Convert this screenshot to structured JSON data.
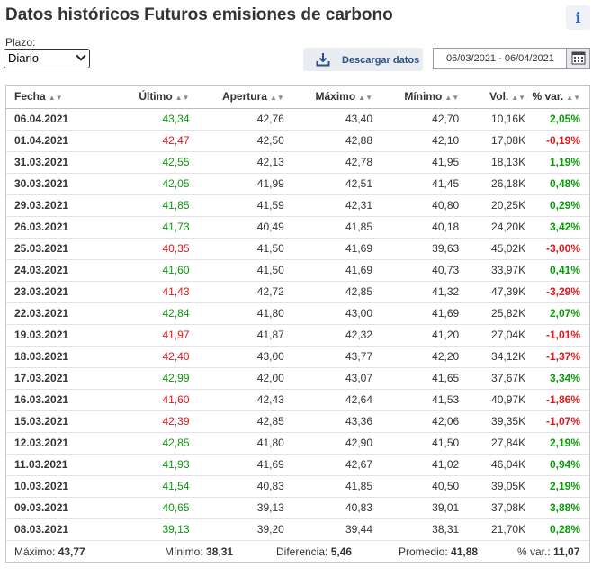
{
  "title": "Datos históricos Futuros emisiones de carbono",
  "info_icon": "info-icon",
  "plazo": {
    "label": "Plazo:",
    "selected": "Diario"
  },
  "download": {
    "label": "Descargar datos",
    "icon": "download-icon"
  },
  "date_range": {
    "value": "06/03/2021 - 06/04/2021",
    "icon": "calendar-icon"
  },
  "colors": {
    "up": "#0a9a0a",
    "down": "#e0161b",
    "accent": "#2a4f8a"
  },
  "table": {
    "headers": [
      "Fecha",
      "Último",
      "Apertura",
      "Máximo",
      "Mínimo",
      "Vol.",
      "% var."
    ],
    "rows": [
      {
        "fecha": "06.04.2021",
        "ultimo": "43,34",
        "apertura": "42,76",
        "maximo": "43,40",
        "minimo": "42,70",
        "vol": "10,16K",
        "var": "2,05%",
        "dir": "up"
      },
      {
        "fecha": "01.04.2021",
        "ultimo": "42,47",
        "apertura": "42,50",
        "maximo": "42,88",
        "minimo": "42,10",
        "vol": "17,08K",
        "var": "-0,19%",
        "dir": "down"
      },
      {
        "fecha": "31.03.2021",
        "ultimo": "42,55",
        "apertura": "42,13",
        "maximo": "42,78",
        "minimo": "41,95",
        "vol": "18,13K",
        "var": "1,19%",
        "dir": "up"
      },
      {
        "fecha": "30.03.2021",
        "ultimo": "42,05",
        "apertura": "41,99",
        "maximo": "42,51",
        "minimo": "41,45",
        "vol": "26,18K",
        "var": "0,48%",
        "dir": "up"
      },
      {
        "fecha": "29.03.2021",
        "ultimo": "41,85",
        "apertura": "41,59",
        "maximo": "42,31",
        "minimo": "40,80",
        "vol": "20,25K",
        "var": "0,29%",
        "dir": "up"
      },
      {
        "fecha": "26.03.2021",
        "ultimo": "41,73",
        "apertura": "40,49",
        "maximo": "41,85",
        "minimo": "40,18",
        "vol": "24,20K",
        "var": "3,42%",
        "dir": "up"
      },
      {
        "fecha": "25.03.2021",
        "ultimo": "40,35",
        "apertura": "41,50",
        "maximo": "41,69",
        "minimo": "39,63",
        "vol": "45,02K",
        "var": "-3,00%",
        "dir": "down"
      },
      {
        "fecha": "24.03.2021",
        "ultimo": "41,60",
        "apertura": "41,50",
        "maximo": "41,69",
        "minimo": "40,73",
        "vol": "33,97K",
        "var": "0,41%",
        "dir": "up"
      },
      {
        "fecha": "23.03.2021",
        "ultimo": "41,43",
        "apertura": "42,72",
        "maximo": "42,85",
        "minimo": "41,32",
        "vol": "47,39K",
        "var": "-3,29%",
        "dir": "down"
      },
      {
        "fecha": "22.03.2021",
        "ultimo": "42,84",
        "apertura": "41,80",
        "maximo": "43,00",
        "minimo": "41,69",
        "vol": "25,82K",
        "var": "2,07%",
        "dir": "up"
      },
      {
        "fecha": "19.03.2021",
        "ultimo": "41,97",
        "apertura": "41,87",
        "maximo": "42,32",
        "minimo": "41,20",
        "vol": "27,04K",
        "var": "-1,01%",
        "dir": "down"
      },
      {
        "fecha": "18.03.2021",
        "ultimo": "42,40",
        "apertura": "43,00",
        "maximo": "43,77",
        "minimo": "42,20",
        "vol": "34,12K",
        "var": "-1,37%",
        "dir": "down"
      },
      {
        "fecha": "17.03.2021",
        "ultimo": "42,99",
        "apertura": "42,00",
        "maximo": "43,07",
        "minimo": "41,65",
        "vol": "37,67K",
        "var": "3,34%",
        "dir": "up"
      },
      {
        "fecha": "16.03.2021",
        "ultimo": "41,60",
        "apertura": "42,43",
        "maximo": "42,64",
        "minimo": "41,53",
        "vol": "40,97K",
        "var": "-1,86%",
        "dir": "down"
      },
      {
        "fecha": "15.03.2021",
        "ultimo": "42,39",
        "apertura": "42,85",
        "maximo": "43,36",
        "minimo": "42,06",
        "vol": "39,35K",
        "var": "-1,07%",
        "dir": "down"
      },
      {
        "fecha": "12.03.2021",
        "ultimo": "42,85",
        "apertura": "41,80",
        "maximo": "42,90",
        "minimo": "41,50",
        "vol": "27,84K",
        "var": "2,19%",
        "dir": "up"
      },
      {
        "fecha": "11.03.2021",
        "ultimo": "41,93",
        "apertura": "41,69",
        "maximo": "42,67",
        "minimo": "41,02",
        "vol": "46,04K",
        "var": "0,94%",
        "dir": "up"
      },
      {
        "fecha": "10.03.2021",
        "ultimo": "41,54",
        "apertura": "40,83",
        "maximo": "41,85",
        "minimo": "40,50",
        "vol": "39,05K",
        "var": "2,19%",
        "dir": "up"
      },
      {
        "fecha": "09.03.2021",
        "ultimo": "40,65",
        "apertura": "39,13",
        "maximo": "40,83",
        "minimo": "39,01",
        "vol": "37,08K",
        "var": "3,88%",
        "dir": "up"
      },
      {
        "fecha": "08.03.2021",
        "ultimo": "39,13",
        "apertura": "39,20",
        "maximo": "39,44",
        "minimo": "38,31",
        "vol": "21,70K",
        "var": "0,28%",
        "dir": "up"
      }
    ]
  },
  "summary": {
    "maximo_label": "Máximo:",
    "maximo": "43,77",
    "minimo_label": "Mínimo:",
    "minimo": "38,31",
    "diferencia_label": "Diferencia:",
    "diferencia": "5,46",
    "promedio_label": "Promedio:",
    "promedio": "41,88",
    "var_label": "% var.:",
    "var": "11,07"
  }
}
